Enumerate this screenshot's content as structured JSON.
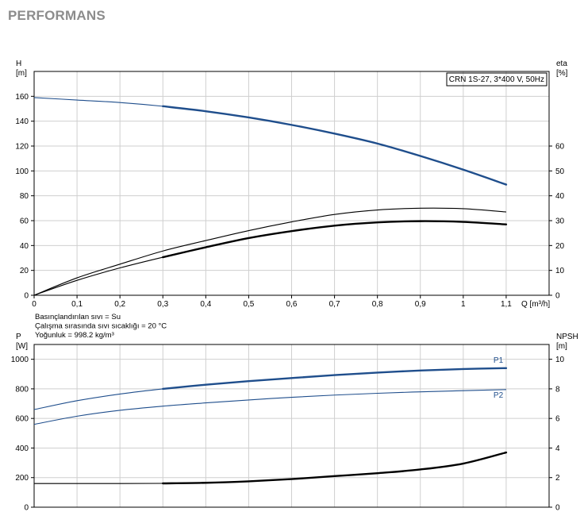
{
  "page": {
    "title": "PERFORMANS"
  },
  "chart_data": [
    {
      "type": "line",
      "legend_box": "CRN 1S-27, 3*400 V, 50Hz",
      "xlabel": "Q [m³/h]",
      "x_ticks": [
        "0",
        "0,1",
        "0,2",
        "0,3",
        "0,4",
        "0,5",
        "0,6",
        "0,7",
        "0,8",
        "0,9",
        "1",
        "1,1"
      ],
      "xlim": [
        0,
        1.2
      ],
      "y_left": {
        "label": [
          "H",
          "[m]"
        ],
        "lim": [
          0,
          180
        ],
        "ticks": [
          0,
          20,
          40,
          60,
          80,
          100,
          120,
          140,
          160
        ]
      },
      "y_right": {
        "label": [
          "eta",
          "[%]"
        ],
        "lim": [
          0,
          90
        ],
        "ticks": [
          0,
          10,
          20,
          30,
          40,
          50,
          60
        ]
      },
      "grid": true,
      "notes": [
        "Basınçlandırılan sıvı = Su",
        "Çalışma sırasında sıvı sıcaklığı = 20 °C",
        "Yoğunluk = 998.2 kg/m³"
      ],
      "series": [
        {
          "axis": "left",
          "color": "#1f4e8c",
          "x": [
            0,
            0.1,
            0.2,
            0.3,
            0.4,
            0.5,
            0.6,
            0.7,
            0.8,
            0.9,
            1.0,
            1.1
          ],
          "y": [
            159,
            157,
            155,
            152,
            148,
            143,
            137,
            130,
            122,
            112,
            101,
            89
          ],
          "thick_from": 0.3
        },
        {
          "axis": "right",
          "color": "#000000",
          "x": [
            0,
            0.1,
            0.2,
            0.3,
            0.4,
            0.5,
            0.6,
            0.7,
            0.8,
            0.9,
            1.0,
            1.1
          ],
          "y": [
            0,
            7,
            12.5,
            17.8,
            22,
            26,
            29.5,
            32.5,
            34.3,
            35,
            34.8,
            33.5
          ],
          "thick_from": 1.5
        },
        {
          "axis": "right",
          "color": "#000000",
          "x": [
            0,
            0.1,
            0.2,
            0.3,
            0.4,
            0.5,
            0.6,
            0.7,
            0.8,
            0.9,
            1.0,
            1.1
          ],
          "y": [
            0,
            6,
            11,
            15.3,
            19.3,
            23,
            25.8,
            28,
            29.3,
            29.8,
            29.5,
            28.5
          ],
          "thick_from": 0.3
        }
      ]
    },
    {
      "type": "line",
      "x_ticks": [],
      "xlim": [
        0,
        1.2
      ],
      "y_left": {
        "label": [
          "P",
          "[W]"
        ],
        "lim": [
          0,
          1100
        ],
        "ticks": [
          0,
          200,
          400,
          600,
          800,
          1000
        ]
      },
      "y_right": {
        "label": [
          "NPSH",
          "[m]"
        ],
        "lim": [
          0,
          11
        ],
        "ticks": [
          0,
          2,
          4,
          6,
          8,
          10
        ]
      },
      "grid": true,
      "series": [
        {
          "name": "P1",
          "axis": "left",
          "color": "#1f4e8c",
          "x": [
            0,
            0.1,
            0.2,
            0.3,
            0.4,
            0.5,
            0.6,
            0.7,
            0.8,
            0.9,
            1.0,
            1.1
          ],
          "y": [
            660,
            720,
            765,
            800,
            828,
            852,
            873,
            893,
            910,
            924,
            934,
            940
          ],
          "thick_from": 0.3
        },
        {
          "name": "P2",
          "axis": "left",
          "color": "#1f4e8c",
          "x": [
            0,
            0.1,
            0.2,
            0.3,
            0.4,
            0.5,
            0.6,
            0.7,
            0.8,
            0.9,
            1.0,
            1.1
          ],
          "y": [
            560,
            615,
            655,
            683,
            705,
            725,
            743,
            758,
            770,
            780,
            788,
            795
          ],
          "thick_from": 1.5
        },
        {
          "axis": "right",
          "color": "#000000",
          "x": [
            0,
            0.1,
            0.2,
            0.3,
            0.4,
            0.5,
            0.6,
            0.7,
            0.8,
            0.9,
            1.0,
            1.1
          ],
          "y": [
            1.6,
            1.6,
            1.6,
            1.61,
            1.65,
            1.75,
            1.9,
            2.1,
            2.3,
            2.55,
            2.95,
            3.7
          ],
          "thick_from": 0.3
        }
      ]
    }
  ]
}
